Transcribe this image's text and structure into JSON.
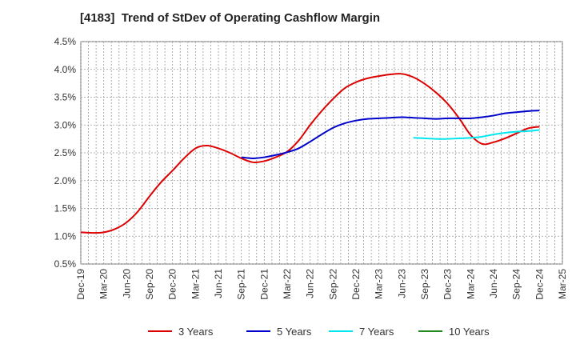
{
  "chart_data": {
    "type": "line",
    "title": "[4183]  Trend of StDev of Operating Cashflow Margin",
    "xlabel": "",
    "ylabel": "",
    "ylim": [
      0.5,
      4.5
    ],
    "y_ticks": [
      "0.5%",
      "1.0%",
      "1.5%",
      "2.0%",
      "2.5%",
      "3.0%",
      "3.5%",
      "4.0%",
      "4.5%"
    ],
    "x_ticks": [
      "Dec-19",
      "Mar-20",
      "Jun-20",
      "Sep-20",
      "Dec-20",
      "Mar-21",
      "Jun-21",
      "Sep-21",
      "Dec-21",
      "Mar-22",
      "Jun-22",
      "Sep-22",
      "Dec-22",
      "Mar-23",
      "Jun-23",
      "Sep-23",
      "Dec-23",
      "Mar-24",
      "Jun-24",
      "Sep-24",
      "Dec-24",
      "Mar-25"
    ],
    "grid": true,
    "legend_position": "bottom",
    "series": [
      {
        "name": "3 Years",
        "color": "#dd0000",
        "points": [
          [
            0,
            1.07
          ],
          [
            0.5,
            1.06
          ],
          [
            1,
            1.07
          ],
          [
            1.5,
            1.13
          ],
          [
            2,
            1.25
          ],
          [
            2.5,
            1.45
          ],
          [
            3,
            1.72
          ],
          [
            3.5,
            1.97
          ],
          [
            4,
            2.18
          ],
          [
            4.5,
            2.4
          ],
          [
            5,
            2.58
          ],
          [
            5.5,
            2.63
          ],
          [
            6,
            2.58
          ],
          [
            6.5,
            2.5
          ],
          [
            7,
            2.4
          ],
          [
            7.5,
            2.33
          ],
          [
            8,
            2.35
          ],
          [
            8.5,
            2.42
          ],
          [
            9,
            2.52
          ],
          [
            9.5,
            2.72
          ],
          [
            10,
            3.0
          ],
          [
            10.5,
            3.25
          ],
          [
            11,
            3.47
          ],
          [
            11.5,
            3.66
          ],
          [
            12,
            3.77
          ],
          [
            12.5,
            3.84
          ],
          [
            13,
            3.88
          ],
          [
            13.5,
            3.91
          ],
          [
            14,
            3.92
          ],
          [
            14.5,
            3.86
          ],
          [
            15,
            3.74
          ],
          [
            15.5,
            3.58
          ],
          [
            16,
            3.38
          ],
          [
            16.5,
            3.12
          ],
          [
            17,
            2.82
          ],
          [
            17.5,
            2.66
          ],
          [
            18,
            2.69
          ],
          [
            18.5,
            2.76
          ],
          [
            19,
            2.85
          ],
          [
            19.5,
            2.94
          ],
          [
            20,
            2.97
          ]
        ]
      },
      {
        "name": "5 Years",
        "color": "#0000cc",
        "points": [
          [
            7,
            2.42
          ],
          [
            7.5,
            2.4
          ],
          [
            8,
            2.42
          ],
          [
            8.5,
            2.46
          ],
          [
            9,
            2.51
          ],
          [
            9.5,
            2.58
          ],
          [
            10,
            2.7
          ],
          [
            10.5,
            2.83
          ],
          [
            11,
            2.95
          ],
          [
            11.5,
            3.03
          ],
          [
            12,
            3.08
          ],
          [
            12.5,
            3.11
          ],
          [
            13,
            3.12
          ],
          [
            13.5,
            3.13
          ],
          [
            14,
            3.14
          ],
          [
            14.5,
            3.13
          ],
          [
            15,
            3.12
          ],
          [
            15.5,
            3.11
          ],
          [
            16,
            3.12
          ],
          [
            16.5,
            3.12
          ],
          [
            17,
            3.12
          ],
          [
            17.5,
            3.14
          ],
          [
            18,
            3.17
          ],
          [
            18.5,
            3.21
          ],
          [
            19,
            3.23
          ],
          [
            19.5,
            3.25
          ],
          [
            20,
            3.26
          ]
        ]
      },
      {
        "name": "7 Years",
        "color": "#00e5ee",
        "points": [
          [
            14.5,
            2.77
          ],
          [
            15,
            2.76
          ],
          [
            15.5,
            2.75
          ],
          [
            16,
            2.75
          ],
          [
            16.5,
            2.76
          ],
          [
            17,
            2.77
          ],
          [
            17.5,
            2.79
          ],
          [
            18,
            2.83
          ],
          [
            18.5,
            2.86
          ],
          [
            19,
            2.88
          ],
          [
            19.5,
            2.89
          ],
          [
            20,
            2.91
          ]
        ]
      },
      {
        "name": "10 Years",
        "color": "#228822",
        "points": []
      }
    ]
  }
}
